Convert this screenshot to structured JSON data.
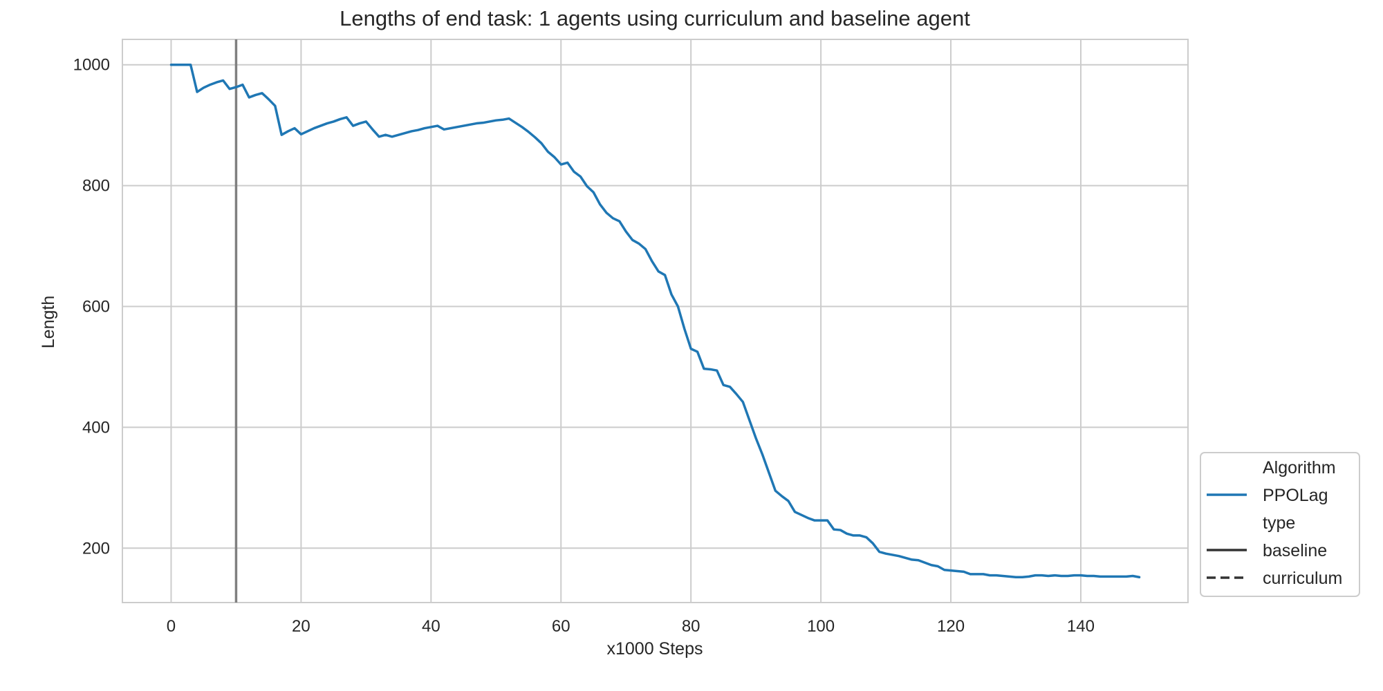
{
  "chart_data": {
    "type": "line",
    "title": "Lengths of end task: 1 agents using curriculum and baseline agent",
    "xlabel": "x1000 Steps",
    "ylabel": "Length",
    "xlim": [
      -7.5,
      156.5
    ],
    "ylim": [
      110,
      1042
    ],
    "xticks": [
      0,
      20,
      40,
      60,
      80,
      100,
      120,
      140
    ],
    "yticks": [
      200,
      400,
      600,
      800,
      1000
    ],
    "grid": true,
    "vline": {
      "x": 10,
      "color": "#808080"
    },
    "legend": {
      "placement": "lower-right outside",
      "entries": [
        {
          "label": "Algorithm",
          "style": "header"
        },
        {
          "label": "PPOLag",
          "style": "line",
          "color": "#1f77b4"
        },
        {
          "label": "type",
          "style": "header"
        },
        {
          "label": "baseline",
          "style": "solid",
          "color": "#333333"
        },
        {
          "label": "curriculum",
          "style": "dashed",
          "color": "#333333"
        }
      ]
    },
    "series": [
      {
        "name": "PPOLag",
        "color": "#1f77b4",
        "dash": "solid",
        "x": [
          0,
          1,
          2,
          3,
          4,
          5,
          6,
          7,
          8,
          9,
          10,
          11,
          12,
          13,
          14,
          15,
          16,
          17,
          18,
          19,
          20,
          21,
          22,
          23,
          24,
          25,
          26,
          27,
          28,
          29,
          30,
          31,
          32,
          33,
          34,
          35,
          36,
          37,
          38,
          39,
          40,
          41,
          42,
          43,
          44,
          45,
          46,
          47,
          48,
          49,
          50,
          51,
          52,
          53,
          54,
          55,
          56,
          57,
          58,
          59,
          60,
          61,
          62,
          63,
          64,
          65,
          66,
          67,
          68,
          69,
          70,
          71,
          72,
          73,
          74,
          75,
          76,
          77,
          78,
          79,
          80,
          81,
          82,
          83,
          84,
          85,
          86,
          87,
          88,
          89,
          90,
          91,
          92,
          93,
          94,
          95,
          96,
          97,
          98,
          99,
          100,
          101,
          102,
          103,
          104,
          105,
          106,
          107,
          108,
          109,
          110,
          111,
          112,
          113,
          114,
          115,
          116,
          117,
          118,
          119,
          120,
          121,
          122,
          123,
          124,
          125,
          126,
          127,
          128,
          129,
          130,
          131,
          132,
          133,
          134,
          135,
          136,
          137,
          138,
          139,
          140,
          141,
          142,
          143,
          144,
          145,
          146,
          147,
          148,
          149
        ],
        "values": [
          1000,
          1000,
          1000,
          1000,
          955,
          962,
          967,
          971,
          974,
          960,
          963,
          967,
          946,
          950,
          953,
          943,
          932,
          884,
          890,
          895,
          885,
          890,
          895,
          899,
          903,
          906,
          910,
          913,
          899,
          903,
          906,
          893,
          881,
          884,
          881,
          884,
          887,
          890,
          892,
          895,
          897,
          899,
          893,
          895,
          897,
          899,
          901,
          903,
          904,
          906,
          908,
          909,
          911,
          904,
          897,
          889,
          880,
          870,
          856,
          847,
          835,
          838,
          823,
          815,
          799,
          789,
          769,
          755,
          746,
          741,
          724,
          710,
          704,
          695,
          675,
          658,
          652,
          620,
          600,
          563,
          530,
          525,
          497,
          496,
          494,
          470,
          467,
          455,
          442,
          412,
          382,
          355,
          325,
          295,
          286,
          278,
          260,
          255,
          250,
          246,
          246,
          246,
          231,
          230,
          224,
          221,
          221,
          218,
          208,
          194,
          191,
          189,
          187,
          184,
          181,
          180,
          176,
          172,
          170,
          164,
          163,
          162,
          161,
          157,
          157,
          157,
          155,
          155,
          154,
          153,
          152,
          152,
          153,
          155,
          155,
          154,
          155,
          154,
          154,
          155,
          155,
          154,
          154,
          153,
          153,
          153,
          153,
          153,
          154,
          152
        ]
      }
    ]
  }
}
